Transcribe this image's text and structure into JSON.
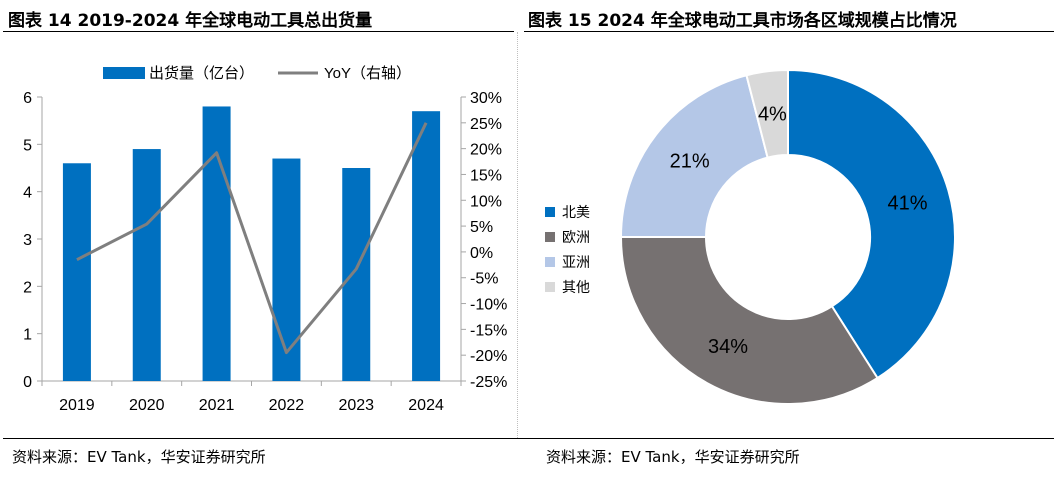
{
  "panels": {
    "left": {
      "title": "图表 14 2019-2024 年全球电动工具总出货量",
      "source": "资料来源：EV Tank，华安证券研究所"
    },
    "right": {
      "title": "图表 15 2024 年全球电动工具市场各区域规模占比情况",
      "source": "资料来源：EV Tank，华安证券研究所"
    }
  },
  "colors": {
    "bar": "#0070c0",
    "line": "#7f7f7f",
    "north_america": "#0070c0",
    "europe": "#767171",
    "asia": "#b4c7e7",
    "other": "#d9d9d9"
  },
  "chart_data": [
    {
      "type": "bar",
      "categories": [
        "2019",
        "2020",
        "2021",
        "2022",
        "2023",
        "2024"
      ],
      "series": [
        {
          "name": "出货量（亿台）",
          "type": "bar",
          "axis": "left",
          "values": [
            4.6,
            4.9,
            5.8,
            4.7,
            4.5,
            5.7
          ]
        },
        {
          "name": "YoY（右轴）",
          "type": "line",
          "axis": "right",
          "values": [
            -1.5,
            5.4,
            19.2,
            -19.5,
            -3.3,
            25.0
          ]
        }
      ],
      "ylim": [
        0,
        6
      ],
      "yticks": [
        "0",
        "1",
        "2",
        "3",
        "4",
        "5",
        "6"
      ],
      "y2lim": [
        -25,
        30
      ],
      "y2ticks": [
        "-25%",
        "-20%",
        "-15%",
        "-10%",
        "-5%",
        "0%",
        "5%",
        "10%",
        "15%",
        "20%",
        "25%",
        "30%"
      ],
      "legend_position": "top",
      "grid": false
    },
    {
      "type": "pie",
      "donut": true,
      "labels": [
        "北美",
        "欧洲",
        "亚洲",
        "其他"
      ],
      "values": [
        41,
        34,
        21,
        4
      ],
      "value_labels": [
        "41%",
        "34%",
        "21%",
        "4%"
      ],
      "legend_position": "left"
    }
  ]
}
